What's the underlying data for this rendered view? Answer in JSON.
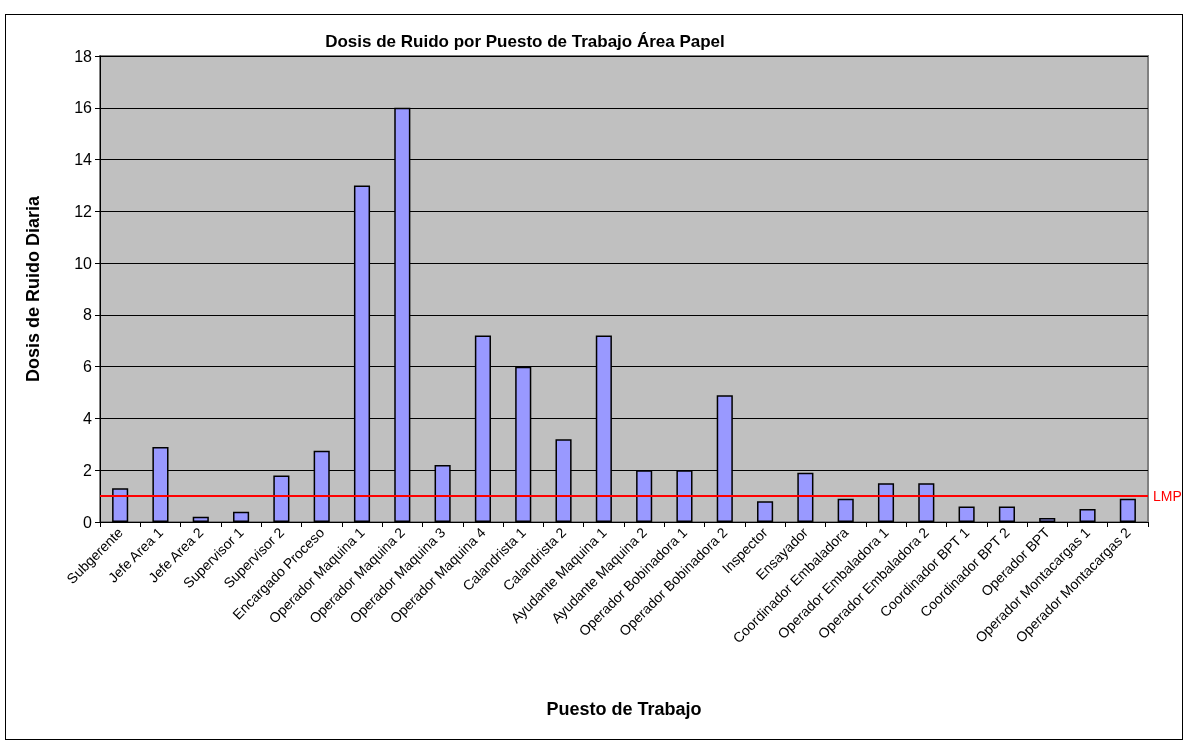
{
  "chart_data": {
    "type": "bar",
    "title": "Dosis de Ruido por Puesto de Trabajo Área Papel",
    "xlabel": "Puesto de Trabajo",
    "ylabel": "Dosis de Ruido Diaria",
    "categories": [
      "Subgerente",
      "Jefe Area 1",
      "Jefe Area 2",
      "Supervisor 1",
      "Supervisor 2",
      "Encargado Proceso",
      "Operador Maquina 1",
      "Operador Maquina 2",
      "Operador Maquina 3",
      "Operador Maquina 4",
      "Calandrista 1",
      "Calandrista 2",
      "Ayudante Maquina 1",
      "Ayudante Maquina 2",
      "Operador Bobinadora 1",
      "Operador Bobinadora 2",
      "Inspector",
      "Ensayador",
      "Coordinador Embaladora",
      "Operador Embaladora 1",
      "Operador Embaladora 2",
      "Coordinador BPT 1",
      "Coordinador BPT 2",
      "Operador BPT",
      "Operador Montacargas 1",
      "Operador Montacargas 2"
    ],
    "values": [
      1.3,
      2.9,
      0.2,
      0.4,
      1.8,
      2.75,
      13,
      16,
      2.2,
      7.2,
      6.0,
      3.2,
      7.2,
      2.0,
      2.0,
      4.9,
      0.8,
      1.9,
      0.9,
      1.5,
      1.5,
      0.6,
      0.6,
      0.15,
      0.5,
      0.9
    ],
    "color": "#9999ff",
    "ylim": [
      0,
      18
    ],
    "yticks": [
      0,
      2,
      4,
      6,
      8,
      10,
      12,
      14,
      16,
      18
    ],
    "grid": "y",
    "ref_lines": [
      {
        "axis": "y",
        "value": 1,
        "label": "LMP",
        "color": "#ff0000"
      }
    ]
  }
}
